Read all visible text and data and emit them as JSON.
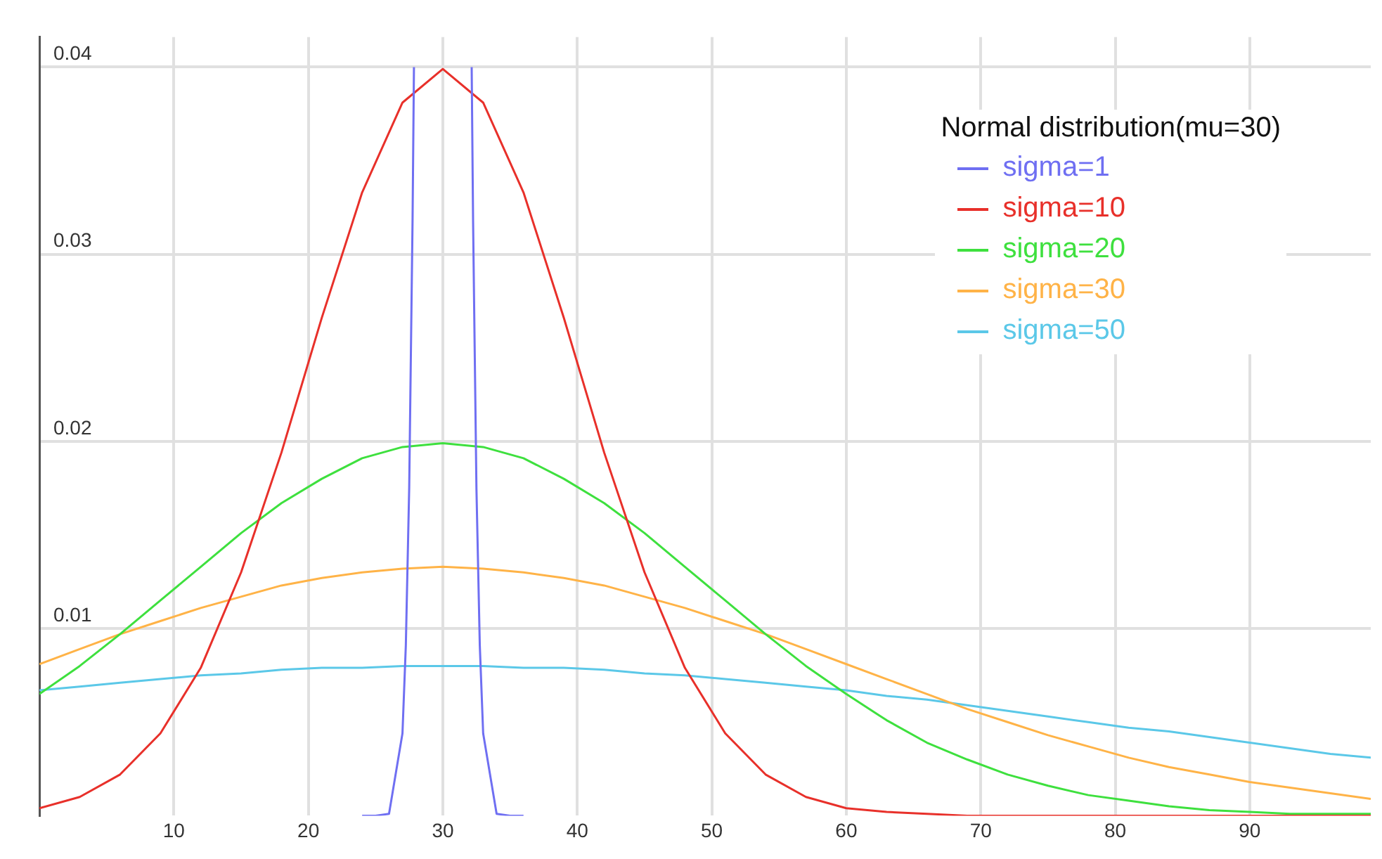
{
  "chart_data": {
    "type": "line",
    "legend_title": "Normal distribution(mu=30)",
    "legend": "top right",
    "grid": true,
    "marker": "none",
    "line_style": "solid",
    "xlim": [
      0,
      99
    ],
    "ylim": [
      0,
      0.0416
    ],
    "xticks": [
      10,
      20,
      30,
      40,
      50,
      60,
      70,
      80,
      90
    ],
    "yticks": [
      0.01,
      0.02,
      0.03,
      0.04
    ],
    "x": [
      0,
      3,
      6,
      9,
      12,
      15,
      18,
      21,
      24,
      27,
      30,
      33,
      36,
      39,
      42,
      45,
      48,
      51,
      54,
      57,
      60,
      63,
      66,
      69,
      72,
      75,
      78,
      81,
      84,
      87,
      90,
      93,
      96,
      99
    ],
    "series": [
      {
        "name": "sigma=1",
        "color": "#6f6ff2",
        "x": [
          24,
          25,
          26,
          27,
          27.25,
          27.5,
          27.75,
          27.854,
          30,
          32.146,
          32.25,
          32.5,
          32.75,
          33,
          34,
          35,
          36
        ],
        "values": [
          0,
          0,
          0.0001,
          0.0044,
          0.0091,
          0.0175,
          0.0318,
          0.04,
          null,
          0.04,
          0.0318,
          0.0175,
          0.0091,
          0.0044,
          0.0001,
          0,
          0
        ]
      },
      {
        "name": "sigma=10",
        "color": "#e8302a",
        "values": [
          0.0004,
          0.001,
          0.0022,
          0.0044,
          0.0079,
          0.013,
          0.0194,
          0.0266,
          0.0333,
          0.0381,
          0.0399,
          0.0381,
          0.0333,
          0.0266,
          0.0194,
          0.013,
          0.0079,
          0.0044,
          0.0022,
          0.001,
          0.0004,
          0.0002,
          0.0001,
          0,
          0,
          0,
          0,
          0,
          0,
          0,
          0,
          0,
          0,
          0
        ]
      },
      {
        "name": "sigma=20",
        "color": "#3ee03e",
        "values": [
          0.0065,
          0.008,
          0.0097,
          0.0115,
          0.0133,
          0.0151,
          0.0167,
          0.018,
          0.0191,
          0.0197,
          0.0199,
          0.0197,
          0.0191,
          0.018,
          0.0167,
          0.0151,
          0.0133,
          0.0115,
          0.0097,
          0.008,
          0.0065,
          0.0051,
          0.0039,
          0.003,
          0.0022,
          0.0016,
          0.0011,
          0.0008,
          0.0005,
          0.0003,
          0.0002,
          0.0001,
          0.0001,
          0.0001
        ]
      },
      {
        "name": "sigma=30",
        "color": "#ffb347",
        "values": [
          0.0081,
          0.0089,
          0.0097,
          0.0104,
          0.0111,
          0.0117,
          0.0123,
          0.0127,
          0.013,
          0.0132,
          0.0133,
          0.0132,
          0.013,
          0.0127,
          0.0123,
          0.0117,
          0.0111,
          0.0104,
          0.0097,
          0.0089,
          0.0081,
          0.0073,
          0.0065,
          0.0057,
          0.005,
          0.0043,
          0.0037,
          0.0031,
          0.0026,
          0.0022,
          0.0018,
          0.0015,
          0.0012,
          0.0009
        ]
      },
      {
        "name": "sigma=50",
        "color": "#5bc8e8",
        "values": [
          0.0067,
          0.0069,
          0.0071,
          0.0073,
          0.0075,
          0.0076,
          0.0078,
          0.0079,
          0.0079,
          0.008,
          0.008,
          0.008,
          0.0079,
          0.0079,
          0.0078,
          0.0076,
          0.0075,
          0.0073,
          0.0071,
          0.0069,
          0.0067,
          0.0064,
          0.0062,
          0.0059,
          0.0056,
          0.0053,
          0.005,
          0.0047,
          0.0045,
          0.0042,
          0.0039,
          0.0036,
          0.0033,
          0.0031
        ]
      }
    ]
  }
}
